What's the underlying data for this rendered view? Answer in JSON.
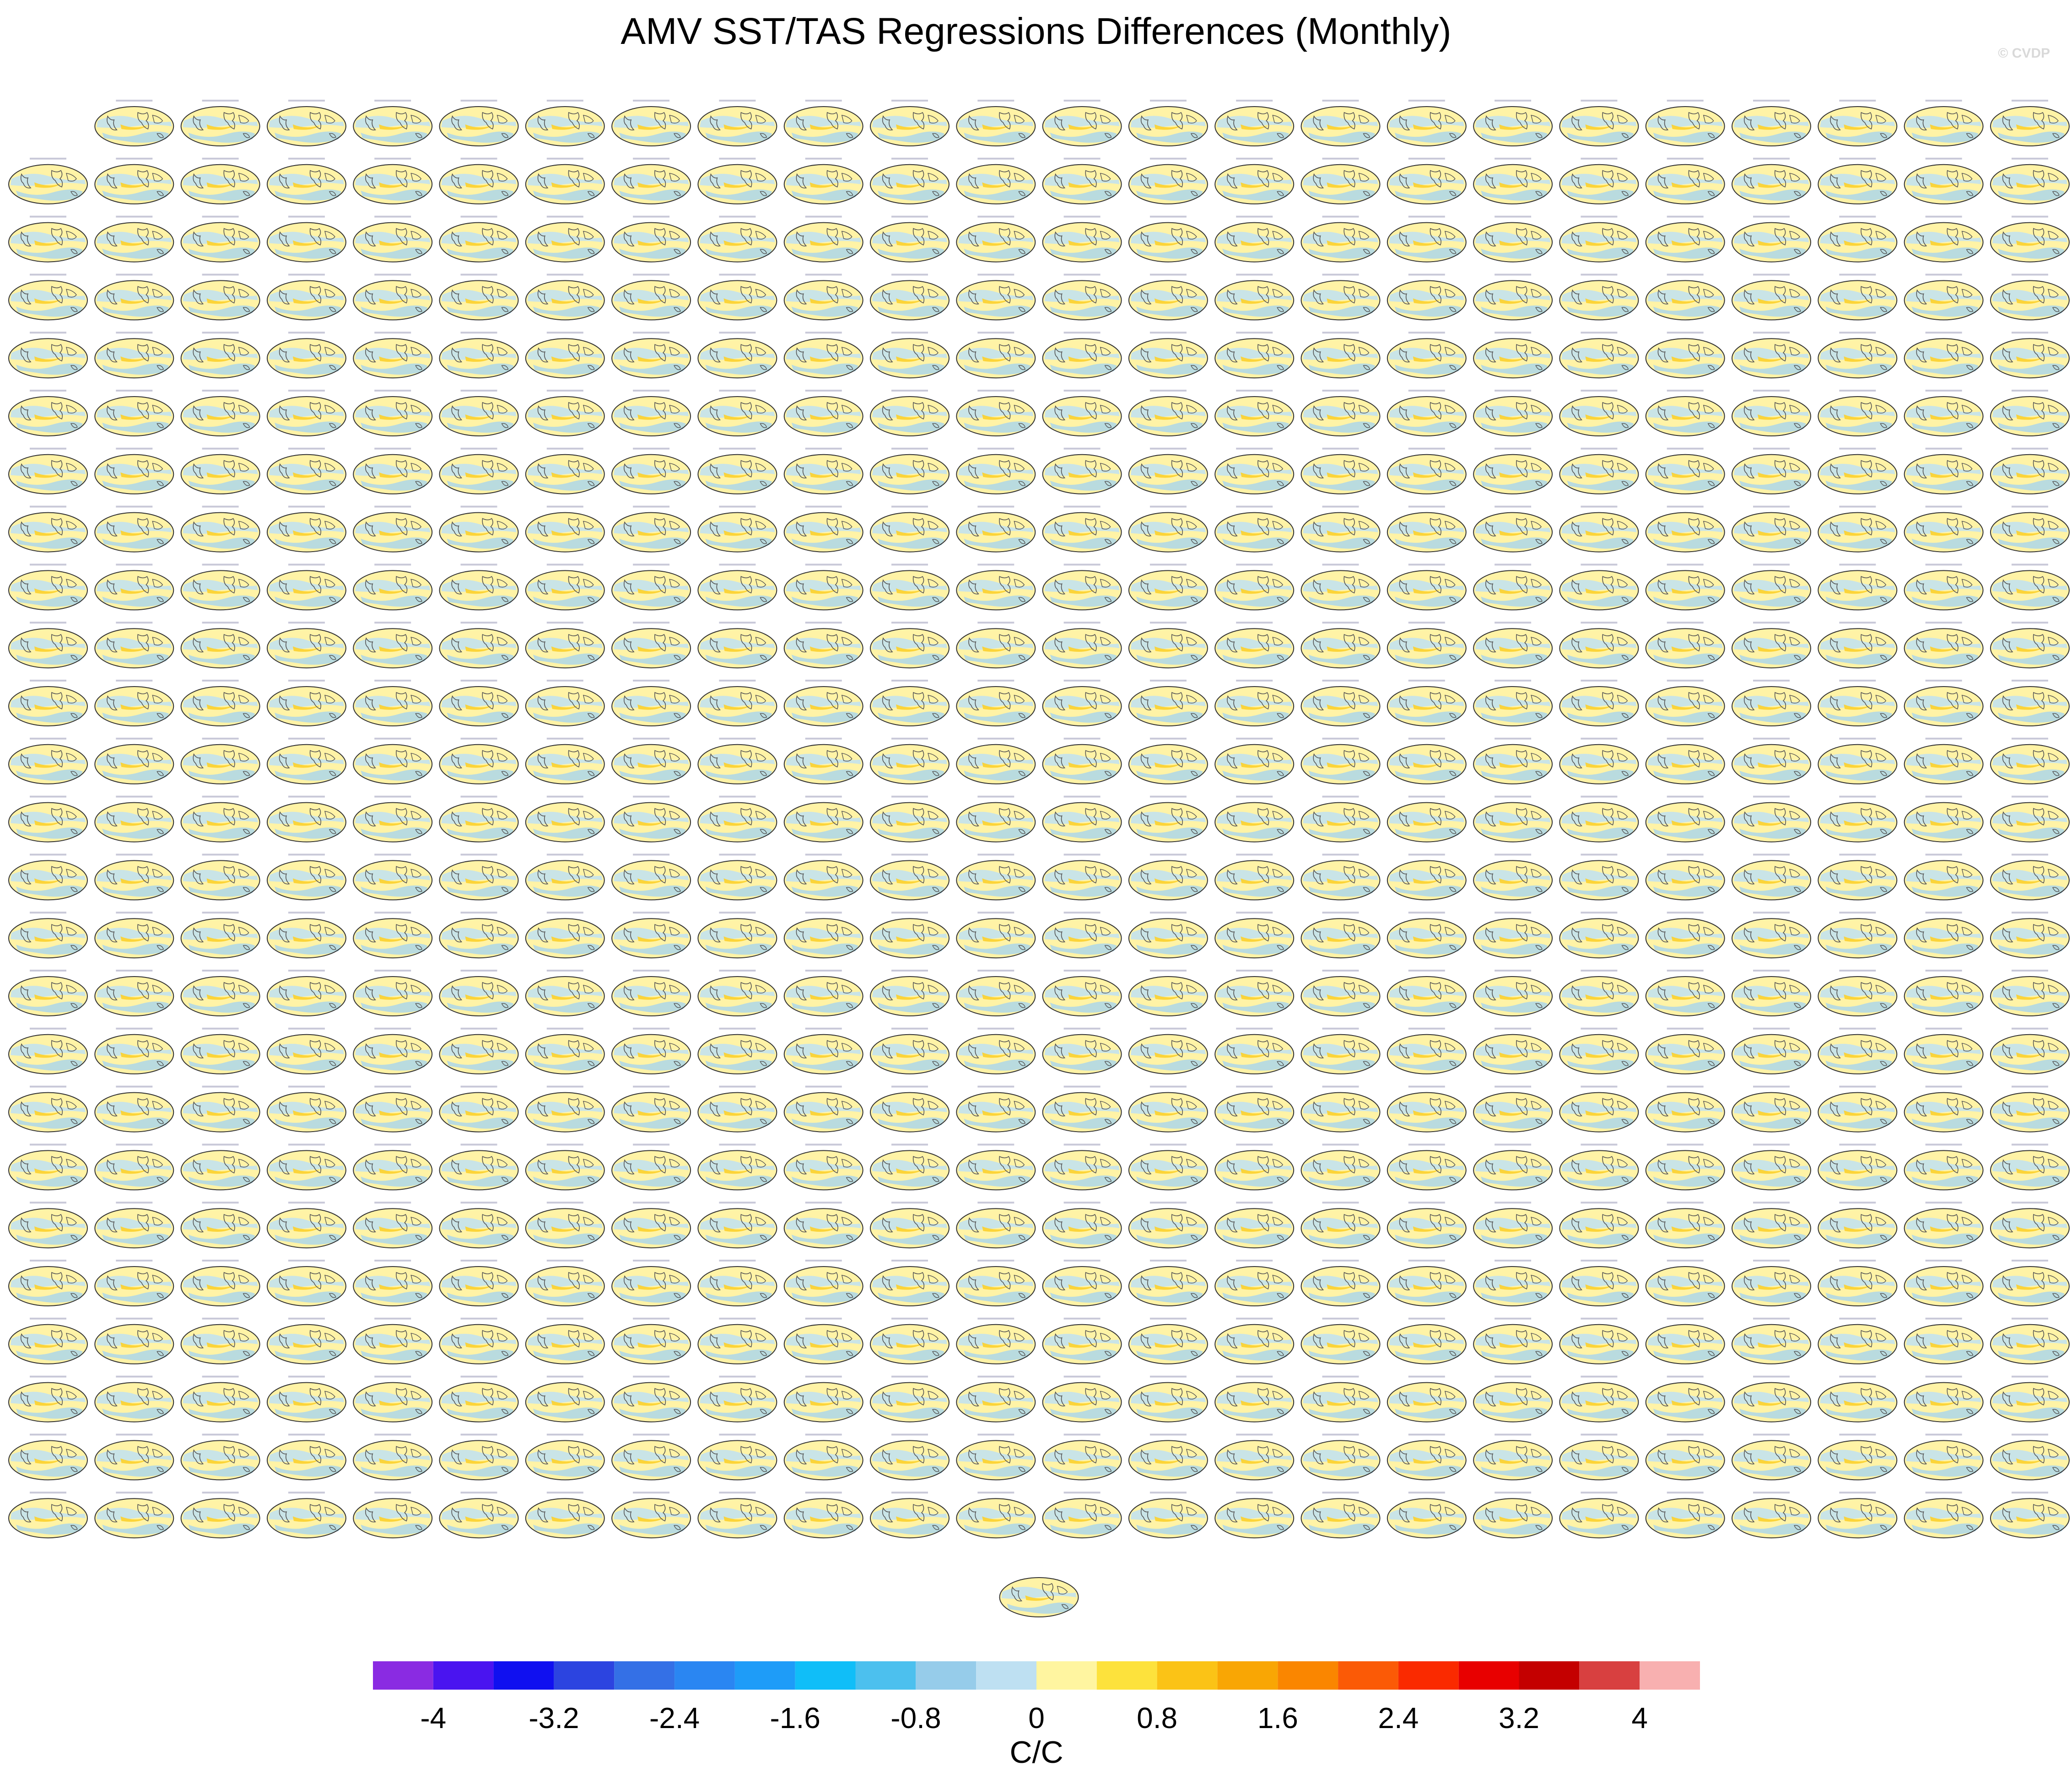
{
  "title": "AMV SST/TAS Regressions Differences (Monthly)",
  "credit": "© CVDP",
  "panels": {
    "rows": 25,
    "columns": 24,
    "first_row_columns": 23,
    "extra_bottom_panel": true
  },
  "chart_data": {
    "type": "heatmap",
    "title": "AMV SST/TAS Regressions Differences (Monthly)",
    "colorbar": {
      "unit": "C/C",
      "bin_edges": [
        -4.4,
        -4,
        -3.6,
        -3.2,
        -2.8,
        -2.4,
        -2,
        -1.6,
        -1.2,
        -0.8,
        -0.4,
        0,
        0.4,
        0.8,
        1.2,
        1.6,
        2,
        2.4,
        2.8,
        3.2,
        3.6,
        4,
        4.4
      ],
      "tick_labels": [
        "-4",
        "-3.2",
        "-2.4",
        "-1.6",
        "-0.8",
        "0",
        "0.8",
        "1.6",
        "2.4",
        "3.2",
        "4"
      ],
      "tick_values": [
        -4,
        -3.2,
        -2.4,
        -1.6,
        -0.8,
        0,
        0.8,
        1.6,
        2.4,
        3.2,
        4
      ],
      "colors": [
        "#8a2be2",
        "#4a14f0",
        "#1010f0",
        "#2c44e0",
        "#3470e6",
        "#2a86f2",
        "#1e9cf8",
        "#10bef8",
        "#4cc0ee",
        "#96ccea",
        "#bee0f2",
        "#fff5a0",
        "#fde23c",
        "#fbc316",
        "#f9a604",
        "#fa8600",
        "#fb5a06",
        "#fa2a00",
        "#e80000",
        "#c40000",
        "#d84040",
        "#f8b0b0"
      ]
    }
  }
}
